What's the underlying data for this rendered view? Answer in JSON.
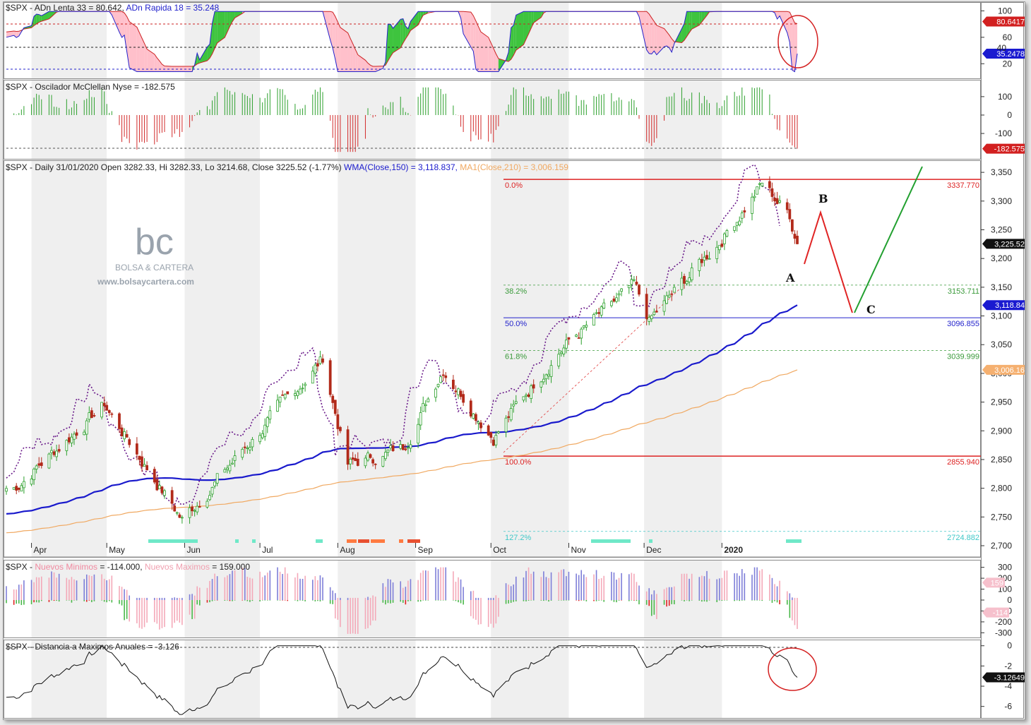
{
  "panels": {
    "adn": {
      "title": "$SPX - ADn Lenta 33 = 80.642, ADn Rapida 18 = 35.248",
      "t1": "$SPX - ADn Lenta 33 = 80.642,",
      "t2": "ADn Rapida 18 = 35.248",
      "ticks": [
        "100",
        "60",
        "20"
      ],
      "badge_slow": "80.6417",
      "badge_fast": "35.2478",
      "badge_40": "40"
    },
    "mcclellan": {
      "title": "$SPX - Oscilador McClellan Nyse = -182.575",
      "ticks": [
        "100",
        "0",
        "-100"
      ],
      "badge": "-182.575"
    },
    "price": {
      "t1": "$SPX - Daily 31/01/2020 Open 3282.33, Hi 3282.33, Lo 3214.68, Close 3225.52 (-1.77%)",
      "t2": "WMA(Close,150) = 3,118.837,",
      "t3": "MA1(Close,210) = 3,006.159",
      "ticks": [
        "3,350",
        "3,300",
        "3,250",
        "3,200",
        "3,150",
        "3,100",
        "3,050",
        "3,000",
        "2,950",
        "2,900",
        "2,850",
        "2,800",
        "2,750",
        "2,700"
      ],
      "badge_close": "3,225.52",
      "badge_wma": "3,118.84",
      "badge_ma": "3,006.16"
    },
    "newhl": {
      "t1": "$SPX -",
      "t2": "Nuevos Minimos",
      "t3": "= -114.000,",
      "t4": "Nuevos Maximos",
      "t5": "= 159.000",
      "ticks": [
        "300",
        "200",
        "100",
        "0",
        "-100",
        "-200",
        "-300"
      ],
      "badge_max": "159",
      "badge_min": "-114"
    },
    "dist": {
      "title": "$SPX - Distancia a Maximos Anuales = -3.126",
      "ticks": [
        "0",
        "-2",
        "-4",
        "-6"
      ],
      "badge": "-3.12649"
    }
  },
  "months": [
    "Apr",
    "May",
    "Jun",
    "Jul",
    "Aug",
    "Sep",
    "Oct",
    "Nov",
    "Dec",
    "2020"
  ],
  "fibonacci": [
    {
      "label": "0.0%",
      "value": "3337.770"
    },
    {
      "label": "38.2%",
      "value": "3153.711"
    },
    {
      "label": "50.0%",
      "value": "3096.855"
    },
    {
      "label": "61.8%",
      "value": "3039.999"
    },
    {
      "label": "100.0%",
      "value": "2855.940"
    },
    {
      "label": "127.2%",
      "value": "2724.882"
    }
  ],
  "waves": {
    "a": "A",
    "b": "B",
    "c": "C"
  },
  "watermark": {
    "logo": "bc",
    "brand": "BOLSA & CARTERA",
    "url": "www.bolsaycartera.com"
  },
  "colors": {
    "up": "#2ca02c",
    "down": "#b22a1a",
    "wma": "#1a1acc",
    "ma": "#f0a860",
    "fib_red": "#dd2222",
    "fib_green": "#3a9a3a",
    "fib_blue": "#2222cc",
    "ext": "#40c8c8"
  },
  "chart_data": {
    "type": "candlestick",
    "symbol": "$SPX",
    "x_range": [
      "2019-03-22",
      "2020-01-31"
    ],
    "ylim": [
      2700,
      3360
    ],
    "anchors": [
      [
        "2019-03-25",
        2800
      ],
      [
        "2019-04-30",
        2945
      ],
      [
        "2019-05-31",
        2745
      ],
      [
        "2019-07-26",
        3025
      ],
      [
        "2019-08-05",
        2840
      ],
      [
        "2019-08-27",
        2870
      ],
      [
        "2019-09-12",
        3010
      ],
      [
        "2019-10-02",
        2890
      ],
      [
        "2019-10-28",
        3040
      ],
      [
        "2019-11-27",
        3150
      ],
      [
        "2019-12-03",
        3090
      ],
      [
        "2019-12-31",
        3230
      ],
      [
        "2020-01-17",
        3330
      ],
      [
        "2020-01-24",
        3295
      ],
      [
        "2020-01-28",
        3275
      ],
      [
        "2020-01-31",
        3225.52
      ]
    ],
    "wma150": {
      "name": "WMA(Close,150)",
      "last": 3118.837
    },
    "ma210": {
      "name": "MA1(Close,210)",
      "last": 3006.159
    },
    "adn": {
      "slow_last": 80.642,
      "fast_last": 35.248,
      "ylim": [
        0,
        110
      ]
    },
    "mcclellan": {
      "last": -182.575,
      "ylim": [
        -230,
        180
      ]
    },
    "new_highs_lows": {
      "new_max_last": 159,
      "new_min_last": -114,
      "ylim": [
        -330,
        330
      ]
    },
    "distance_to_annual_high": {
      "last": -3.126,
      "ylim": [
        -7,
        0.4
      ]
    }
  }
}
